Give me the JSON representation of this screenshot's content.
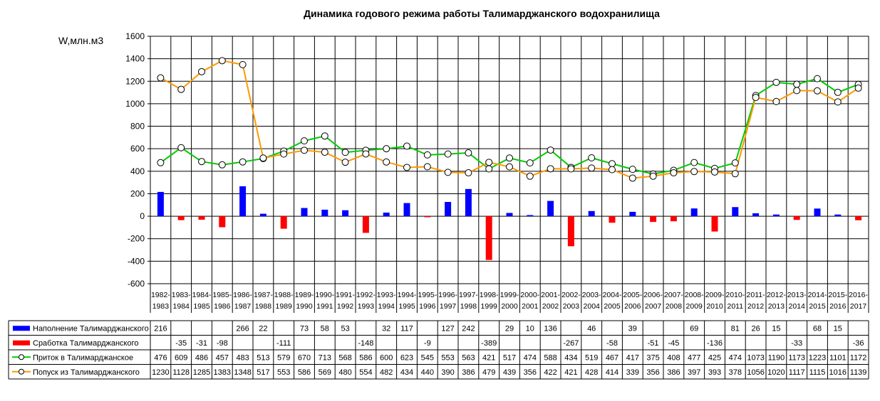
{
  "chart_data": {
    "type": "bar+line",
    "title": "Динамика годового режима работы Талимарджанского водохранилища",
    "ylabel": "W,млн.м3",
    "ylim": [
      -600,
      1600
    ],
    "yticks": [
      -600,
      -400,
      -200,
      0,
      200,
      400,
      600,
      800,
      1000,
      1200,
      1400,
      1600
    ],
    "grid": true,
    "legend_placement": "data-table-bottom",
    "categories": [
      [
        "1982-",
        "1983"
      ],
      [
        "1983-",
        "1984"
      ],
      [
        "1984-",
        "1985"
      ],
      [
        "1985-",
        "1986"
      ],
      [
        "1986-",
        "1987"
      ],
      [
        "1987-",
        "1988"
      ],
      [
        "1988-",
        "1989"
      ],
      [
        "1989-",
        "1990"
      ],
      [
        "1990-",
        "1991"
      ],
      [
        "1991-",
        "1992"
      ],
      [
        "1992-",
        "1993"
      ],
      [
        "1993-",
        "1994"
      ],
      [
        "1994-",
        "1995"
      ],
      [
        "1995-",
        "1996"
      ],
      [
        "1996-",
        "1997"
      ],
      [
        "1997-",
        "1998"
      ],
      [
        "1998-",
        "1999"
      ],
      [
        "1999-",
        "2000"
      ],
      [
        "2000-",
        "2001"
      ],
      [
        "2001-",
        "2002"
      ],
      [
        "2002-",
        "2003"
      ],
      [
        "2003-",
        "2004"
      ],
      [
        "2004-",
        "2005"
      ],
      [
        "2005-",
        "2006"
      ],
      [
        "2006-",
        "2007"
      ],
      [
        "2007-",
        "2008"
      ],
      [
        "2008-",
        "2009"
      ],
      [
        "2009-",
        "2010"
      ],
      [
        "2010-",
        "2011"
      ],
      [
        "2011-",
        "2012"
      ],
      [
        "2012-",
        "2013"
      ],
      [
        "2013-",
        "2014"
      ],
      [
        "2014-",
        "2015"
      ],
      [
        "2015-",
        "2016"
      ],
      [
        "2016-",
        "2017"
      ]
    ],
    "series": [
      {
        "name": "Наполнение Талимарджанского",
        "kind": "bar",
        "color": "#0000ff",
        "values": [
          216,
          null,
          null,
          null,
          266,
          22,
          null,
          73,
          58,
          53,
          null,
          32,
          117,
          null,
          127,
          242,
          null,
          29,
          10,
          136,
          null,
          46,
          null,
          39,
          null,
          null,
          69,
          null,
          81,
          26,
          15,
          null,
          68,
          15,
          null
        ]
      },
      {
        "name": "Сработка Талимарджанского",
        "kind": "bar",
        "color": "#ff0000",
        "values": [
          null,
          -35,
          -31,
          -98,
          null,
          null,
          -111,
          null,
          null,
          null,
          -148,
          null,
          null,
          -9,
          null,
          null,
          -389,
          null,
          null,
          null,
          -267,
          null,
          -58,
          null,
          -51,
          -45,
          null,
          -136,
          null,
          null,
          null,
          -33,
          null,
          null,
          -36
        ]
      },
      {
        "name": "Приток в Талимарджанское",
        "kind": "line",
        "color": "#00cc00",
        "values": [
          476,
          609,
          486,
          457,
          483,
          513,
          579,
          670,
          713,
          568,
          586,
          600,
          623,
          545,
          553,
          563,
          421,
          517,
          474,
          588,
          434,
          519,
          467,
          417,
          375,
          408,
          477,
          425,
          474,
          1073,
          1190,
          1173,
          1223,
          1101,
          1172
        ]
      },
      {
        "name": "Попуск из Талимарджанского",
        "kind": "line",
        "color": "#ff9900",
        "values": [
          1230,
          1128,
          1285,
          1383,
          1348,
          517,
          553,
          586,
          569,
          480,
          554,
          482,
          434,
          440,
          390,
          386,
          479,
          439,
          356,
          422,
          421,
          428,
          414,
          339,
          356,
          386,
          397,
          393,
          378,
          1056,
          1020,
          1117,
          1115,
          1016,
          1139
        ]
      }
    ]
  }
}
